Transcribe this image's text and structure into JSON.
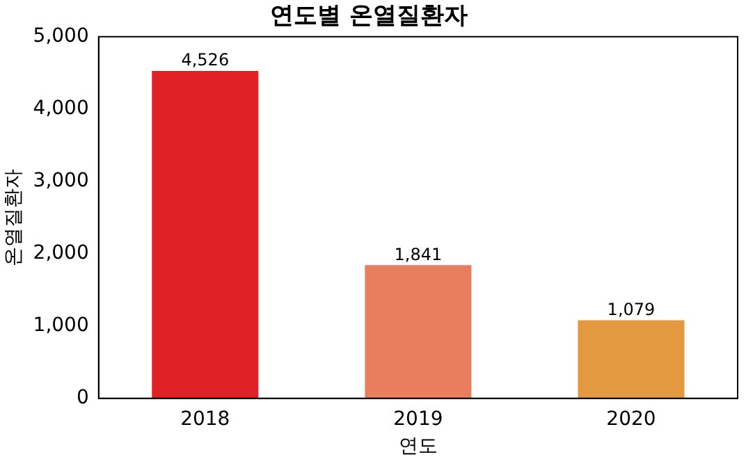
{
  "chart_data": {
    "type": "bar",
    "title": "연도별 온열질환자",
    "xlabel": "연도",
    "ylabel": "온열질환자",
    "categories": [
      "2018",
      "2019",
      "2020"
    ],
    "values": [
      4526,
      1841,
      1079
    ],
    "colors": [
      "#e02226",
      "#e87e5e",
      "#e3993f"
    ],
    "value_labels": [
      "4,526",
      "1,841",
      "1,079"
    ],
    "ylim": [
      0,
      5000
    ],
    "yticks": [
      0,
      {
        "value": 1000,
        "label": "1,000"
      },
      {
        "value": 2000,
        "label": "2,000"
      },
      {
        "value": 3000,
        "label": "3,000"
      },
      {
        "value": 4000,
        "label": "4,000"
      },
      {
        "value": 5000,
        "label": "5,000"
      }
    ],
    "grid": false,
    "legend": false
  }
}
